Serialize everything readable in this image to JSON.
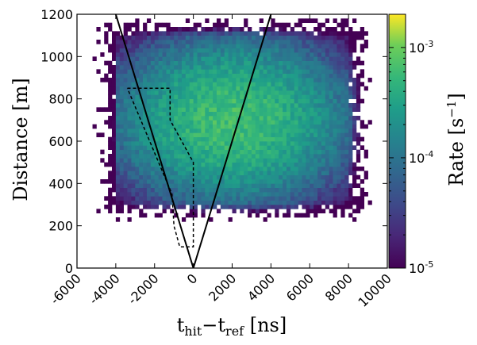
{
  "chart_data": {
    "type": "heatmap",
    "xlabel": "t",
    "xlabel_sub1": "hit",
    "xlabel_mid": "−t",
    "xlabel_sub2": "ref",
    "xlabel_unit": " [ns]",
    "ylabel": "Distance [m]",
    "colorbar_label": "Rate",
    "colorbar_unit_open": "[s",
    "colorbar_unit_exp": "−1",
    "colorbar_unit_close": "]",
    "xlim": [
      -6000,
      10000
    ],
    "ylim": [
      0,
      1200
    ],
    "x_ticks": [
      -6000,
      -4000,
      -2000,
      0,
      2000,
      4000,
      6000,
      8000,
      10000
    ],
    "x_tick_labels": [
      "-6000",
      "-4000",
      "-2000",
      "0",
      "2000",
      "4000",
      "6000",
      "8000",
      "10000"
    ],
    "y_ticks": [
      0,
      200,
      400,
      600,
      800,
      1000,
      1200
    ],
    "y_tick_labels": [
      "0",
      "200",
      "400",
      "600",
      "800",
      "1000",
      "1200"
    ],
    "color_scale": "log",
    "colormap": "viridis",
    "color_range": [
      1e-05,
      0.002
    ],
    "colorbar_ticks": [
      {
        "value": 0.001,
        "base": "10",
        "exp": "-3"
      },
      {
        "value": 0.0001,
        "base": "10",
        "exp": "-4"
      },
      {
        "value": 1e-05,
        "base": "10",
        "exp": "-5"
      }
    ],
    "bin_width_x": 200,
    "bin_height_y": 20,
    "core_region": {
      "x": [
        -4000,
        8000
      ],
      "y": [
        300,
        1100
      ],
      "peak_rate": 0.0009
    },
    "light_cone": [
      {
        "x": [
          0,
          -4000
        ],
        "y": [
          0,
          1200
        ]
      },
      {
        "x": [
          0,
          4000
        ],
        "y": [
          0,
          1200
        ]
      }
    ],
    "dashed_region": [
      [
        -3400,
        850
      ],
      [
        -1200,
        850
      ],
      [
        -1200,
        700
      ],
      [
        0,
        500
      ],
      [
        0,
        100
      ],
      [
        -700,
        100
      ],
      [
        -1000,
        200
      ],
      [
        -1100,
        350
      ],
      [
        -3400,
        850
      ]
    ]
  }
}
